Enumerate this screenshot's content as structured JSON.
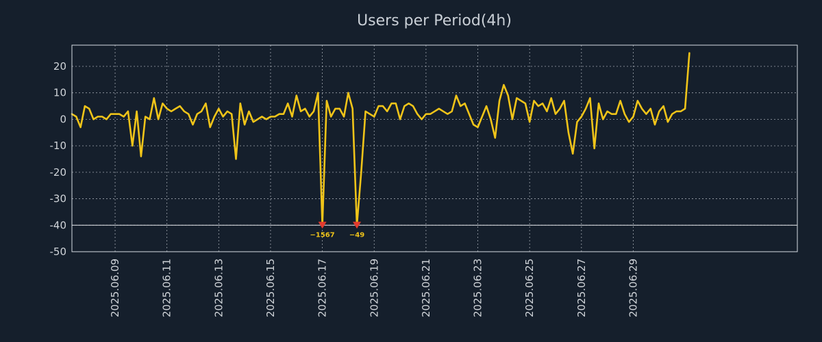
{
  "chart_data": {
    "type": "line",
    "title": "Users per Period(4h)",
    "xlabel": "",
    "ylabel": "",
    "ylim": [
      -50,
      28
    ],
    "xlim": [
      0,
      168
    ],
    "grid": true,
    "x_ticks": [
      {
        "pos": 10,
        "label": "2025.06.09"
      },
      {
        "pos": 22,
        "label": "2025.06.11"
      },
      {
        "pos": 34,
        "label": "2025.06.13"
      },
      {
        "pos": 46,
        "label": "2025.06.15"
      },
      {
        "pos": 58,
        "label": "2025.06.17"
      },
      {
        "pos": 70,
        "label": "2025.06.19"
      },
      {
        "pos": 82,
        "label": "2025.06.21"
      },
      {
        "pos": 94,
        "label": "2025.06.23"
      },
      {
        "pos": 106,
        "label": "2025.06.25"
      },
      {
        "pos": 118,
        "label": "2025.06.27"
      },
      {
        "pos": 130,
        "label": "2025.06.29"
      }
    ],
    "y_ticks": [
      20,
      10,
      0,
      -10,
      -20,
      -30,
      -40,
      -50
    ],
    "clip_value": -40,
    "series": [
      {
        "name": "Users",
        "color": "#f0c419",
        "values": [
          2,
          1,
          -3,
          5,
          4,
          0,
          1,
          1,
          0,
          2,
          2,
          2,
          1,
          3,
          -10,
          3,
          -14,
          1,
          0,
          8,
          0,
          6,
          4,
          3,
          4,
          5,
          3,
          2,
          -2,
          2,
          3,
          6,
          -3,
          1,
          4,
          1,
          3,
          2,
          -15,
          6,
          -2,
          3,
          -1,
          0,
          1,
          0,
          1,
          1,
          2,
          2,
          6,
          1,
          9,
          3,
          4,
          1,
          3,
          10,
          -40,
          7,
          1,
          4,
          4,
          1,
          10,
          4,
          -40,
          -20,
          3,
          2,
          1,
          5,
          5,
          3,
          6,
          6,
          0,
          5,
          6,
          5,
          2,
          0,
          2,
          2,
          3,
          4,
          3,
          2,
          3,
          9,
          5,
          6,
          2,
          -2,
          -3,
          1,
          5,
          0,
          -7,
          7,
          13,
          9,
          0,
          8,
          7,
          6,
          -1,
          7,
          5,
          6,
          3,
          8,
          2,
          4,
          7,
          -5,
          -13,
          -1,
          1,
          4,
          8,
          -11,
          6,
          0,
          3,
          2,
          2,
          7,
          2,
          -1,
          1,
          7,
          4,
          2,
          4,
          -2,
          3,
          5,
          -1,
          2,
          3,
          3,
          4,
          25
        ]
      }
    ],
    "annotations": [
      {
        "index": 58,
        "value": -40,
        "label": "−1567"
      },
      {
        "index": 66,
        "value": -40,
        "label": "−49"
      }
    ]
  }
}
